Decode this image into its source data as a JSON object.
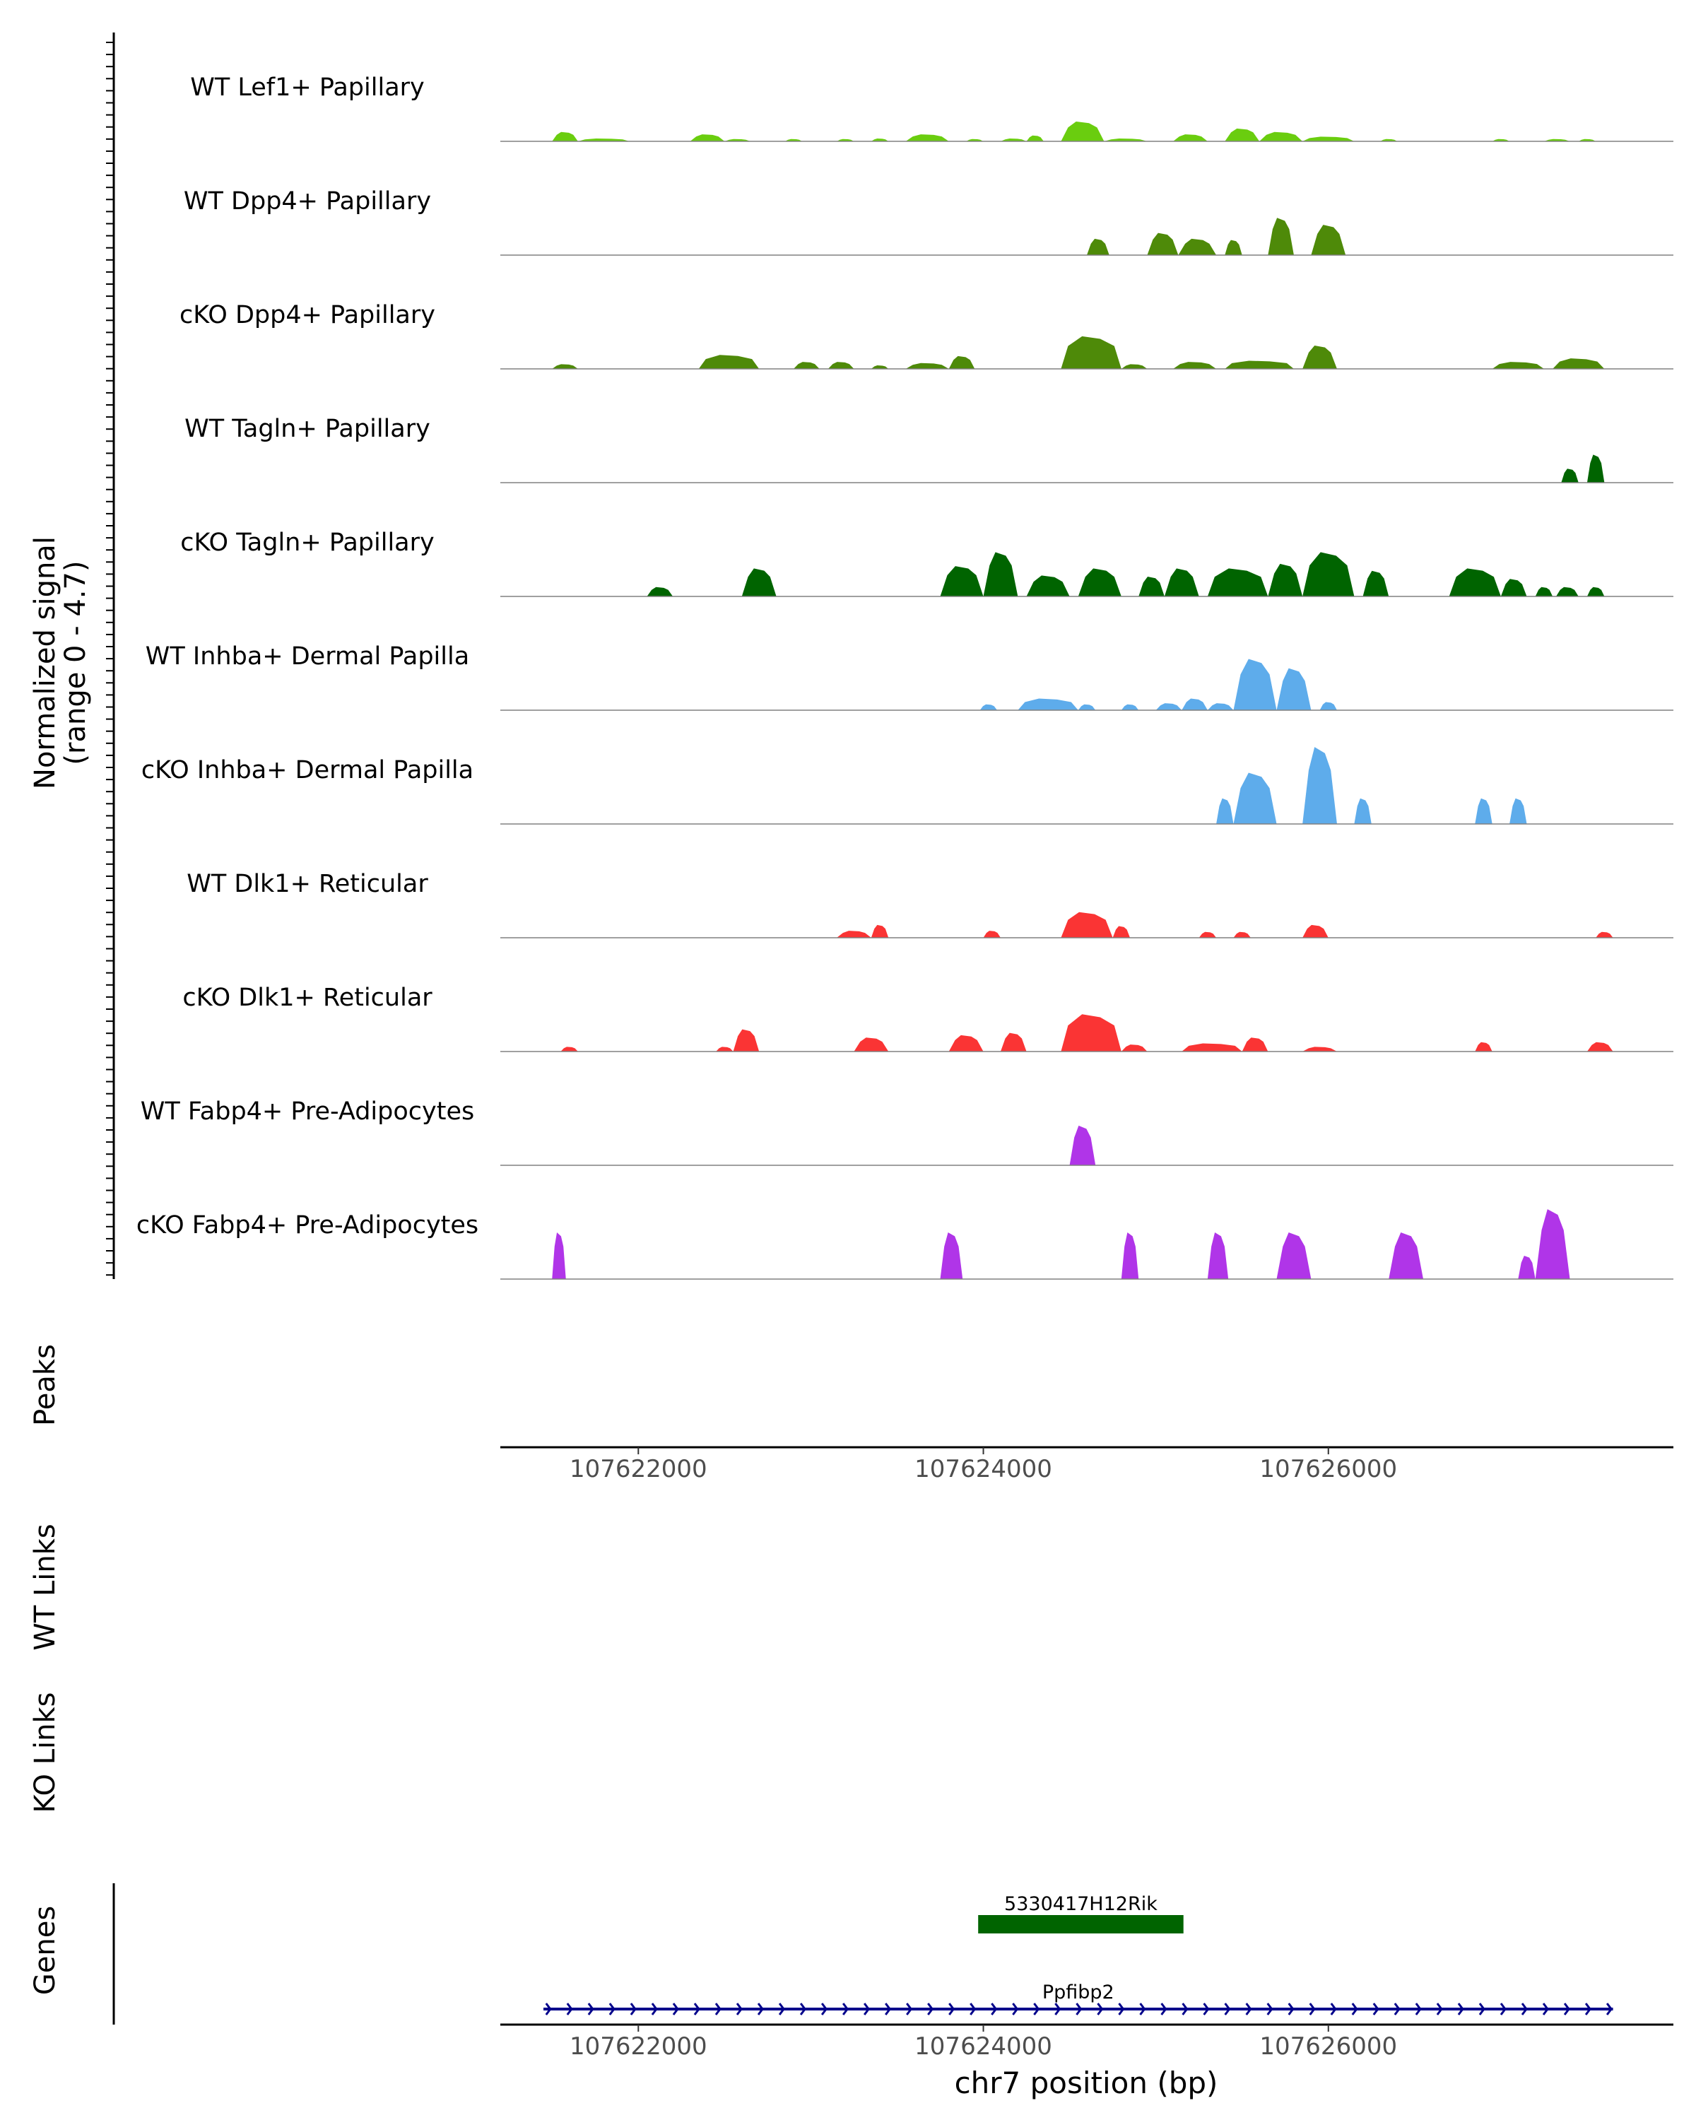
{
  "chart_data": {
    "type": "area",
    "title": "",
    "xlabel": "chr7 position (bp)",
    "ylabel_line1": "Normalized signal",
    "ylabel_line2": "(range 0 - 4.7)",
    "xlim": [
      107621200,
      107628000
    ],
    "ylim": [
      0,
      4.7
    ],
    "x_ticks": [
      107622000,
      107624000,
      107626000
    ],
    "x_tick_labels": [
      "107622000",
      "107624000",
      "107626000"
    ],
    "panel_labels": {
      "peaks": "Peaks",
      "wt_links": "WT Links",
      "ko_links": "KO Links",
      "genes": "Genes"
    },
    "tracks": [
      {
        "name": "WT Lef1+ Papillary",
        "color": "#6ACD0F",
        "peaks": [
          [
            107621500,
            107621650,
            0.4
          ],
          [
            107621650,
            107621950,
            0.12
          ],
          [
            107622300,
            107622500,
            0.3
          ],
          [
            107622500,
            107622650,
            0.1
          ],
          [
            107622850,
            107622950,
            0.1
          ],
          [
            107623150,
            107623250,
            0.1
          ],
          [
            107623350,
            107623450,
            0.12
          ],
          [
            107623550,
            107623800,
            0.3
          ],
          [
            107623900,
            107624000,
            0.1
          ],
          [
            107624100,
            107624250,
            0.12
          ],
          [
            107624250,
            107624350,
            0.25
          ],
          [
            107624450,
            107624700,
            0.85
          ],
          [
            107624700,
            107624950,
            0.12
          ],
          [
            107625100,
            107625300,
            0.3
          ],
          [
            107625400,
            107625600,
            0.55
          ],
          [
            107625600,
            107625850,
            0.4
          ],
          [
            107625850,
            107626150,
            0.2
          ],
          [
            107626300,
            107626400,
            0.1
          ],
          [
            107626950,
            107627050,
            0.1
          ],
          [
            107627250,
            107627400,
            0.1
          ],
          [
            107627450,
            107627550,
            0.1
          ]
        ]
      },
      {
        "name": "WT Dpp4+ Papillary",
        "color": "#4E8A09",
        "peaks": [
          [
            107624600,
            107624730,
            0.7
          ],
          [
            107624950,
            107625130,
            0.95
          ],
          [
            107625130,
            107625350,
            0.7
          ],
          [
            107625400,
            107625500,
            0.65
          ],
          [
            107625650,
            107625800,
            1.6
          ],
          [
            107625900,
            107626100,
            1.3
          ]
        ]
      },
      {
        "name": "cKO Dpp4+ Papillary",
        "color": "#4E8A09",
        "peaks": [
          [
            107621500,
            107621650,
            0.2
          ],
          [
            107622350,
            107622700,
            0.6
          ],
          [
            107622900,
            107623050,
            0.3
          ],
          [
            107623100,
            107623250,
            0.3
          ],
          [
            107623350,
            107623450,
            0.15
          ],
          [
            107623550,
            107623800,
            0.25
          ],
          [
            107623800,
            107623950,
            0.55
          ],
          [
            107624450,
            107624800,
            1.4
          ],
          [
            107624800,
            107624950,
            0.2
          ],
          [
            107625100,
            107625350,
            0.3
          ],
          [
            107625400,
            107625800,
            0.35
          ],
          [
            107625850,
            107626050,
            1.0
          ],
          [
            107626950,
            107627250,
            0.3
          ],
          [
            107627300,
            107627600,
            0.45
          ]
        ]
      },
      {
        "name": "WT Tagln+ Papillary",
        "color": "#006400",
        "peaks": [
          [
            107627350,
            107627450,
            0.6
          ],
          [
            107627500,
            107627600,
            1.2
          ]
        ]
      },
      {
        "name": "cKO Tagln+ Papillary",
        "color": "#006400",
        "peaks": [
          [
            107622050,
            107622200,
            0.4
          ],
          [
            107622600,
            107622800,
            1.2
          ],
          [
            107623750,
            107624000,
            1.3
          ],
          [
            107624000,
            107624200,
            1.9
          ],
          [
            107624250,
            107624500,
            0.9
          ],
          [
            107624550,
            107624800,
            1.2
          ],
          [
            107624900,
            107625050,
            0.85
          ],
          [
            107625050,
            107625250,
            1.2
          ],
          [
            107625300,
            107625650,
            1.2
          ],
          [
            107625650,
            107625850,
            1.4
          ],
          [
            107625850,
            107626150,
            1.9
          ],
          [
            107626200,
            107626350,
            1.1
          ],
          [
            107626700,
            107627000,
            1.2
          ],
          [
            107627000,
            107627150,
            0.75
          ],
          [
            107627200,
            107627300,
            0.4
          ],
          [
            107627320,
            107627450,
            0.4
          ],
          [
            107627500,
            107627600,
            0.4
          ]
        ]
      },
      {
        "name": "WT Inhba+ Dermal Papilla",
        "color": "#5EACEB",
        "peaks": [
          [
            107623980,
            107624080,
            0.25
          ],
          [
            107624200,
            107624550,
            0.5
          ],
          [
            107624550,
            107624650,
            0.25
          ],
          [
            107624800,
            107624900,
            0.25
          ],
          [
            107625000,
            107625150,
            0.3
          ],
          [
            107625150,
            107625300,
            0.5
          ],
          [
            107625300,
            107625450,
            0.3
          ],
          [
            107625450,
            107625700,
            2.2
          ],
          [
            107625700,
            107625900,
            1.8
          ],
          [
            107625950,
            107626050,
            0.35
          ]
        ]
      },
      {
        "name": "cKO Inhba+ Dermal Papilla",
        "color": "#5EACEB",
        "peaks": [
          [
            107625350,
            107625450,
            1.1
          ],
          [
            107625450,
            107625700,
            2.2
          ],
          [
            107625850,
            107626050,
            3.3
          ],
          [
            107626150,
            107626250,
            1.1
          ],
          [
            107626850,
            107626950,
            1.1
          ],
          [
            107627050,
            107627150,
            1.1
          ]
        ]
      },
      {
        "name": "WT Dlk1+ Reticular",
        "color": "#FA3434",
        "peaks": [
          [
            107623150,
            107623350,
            0.3
          ],
          [
            107623350,
            107623450,
            0.55
          ],
          [
            107624000,
            107624100,
            0.3
          ],
          [
            107624450,
            107624750,
            1.1
          ],
          [
            107624750,
            107624850,
            0.5
          ],
          [
            107625250,
            107625350,
            0.25
          ],
          [
            107625450,
            107625550,
            0.25
          ],
          [
            107625850,
            107626000,
            0.55
          ],
          [
            107627550,
            107627650,
            0.25
          ]
        ]
      },
      {
        "name": "cKO Dlk1+ Reticular",
        "color": "#FA3434",
        "peaks": [
          [
            107621550,
            107621650,
            0.2
          ],
          [
            107622450,
            107622550,
            0.2
          ],
          [
            107622550,
            107622700,
            0.95
          ],
          [
            107623250,
            107623450,
            0.6
          ],
          [
            107623800,
            107624000,
            0.7
          ],
          [
            107624100,
            107624250,
            0.8
          ],
          [
            107624450,
            107624800,
            1.6
          ],
          [
            107624800,
            107624950,
            0.3
          ],
          [
            107625150,
            107625500,
            0.35
          ],
          [
            107625500,
            107625650,
            0.6
          ],
          [
            107625850,
            107626050,
            0.2
          ],
          [
            107626850,
            107626950,
            0.4
          ],
          [
            107627500,
            107627650,
            0.4
          ]
        ]
      },
      {
        "name": "WT Fabp4+ Pre-Adipocytes",
        "color": "#B035E8",
        "peaks": [
          [
            107624500,
            107624650,
            1.7
          ]
        ]
      },
      {
        "name": "cKO Fabp4+ Pre-Adipocytes",
        "color": "#B035E8",
        "peaks": [
          [
            107621500,
            107621580,
            2.0
          ],
          [
            107623750,
            107623880,
            2.0
          ],
          [
            107624800,
            107624900,
            2.0
          ],
          [
            107625300,
            107625420,
            2.0
          ],
          [
            107625700,
            107625900,
            2.0
          ],
          [
            107626350,
            107626550,
            2.0
          ],
          [
            107627100,
            107627200,
            1.0
          ],
          [
            107627200,
            107627400,
            3.0
          ]
        ]
      }
    ],
    "genes": [
      {
        "name": "5330417H12Rik",
        "start": 107623970,
        "end": 107625160,
        "strand": "+",
        "color": "#006400"
      },
      {
        "name": "Ppfibp2",
        "start": 107621450,
        "end": 107627650,
        "strand": "+",
        "color": "#00008B"
      }
    ]
  }
}
